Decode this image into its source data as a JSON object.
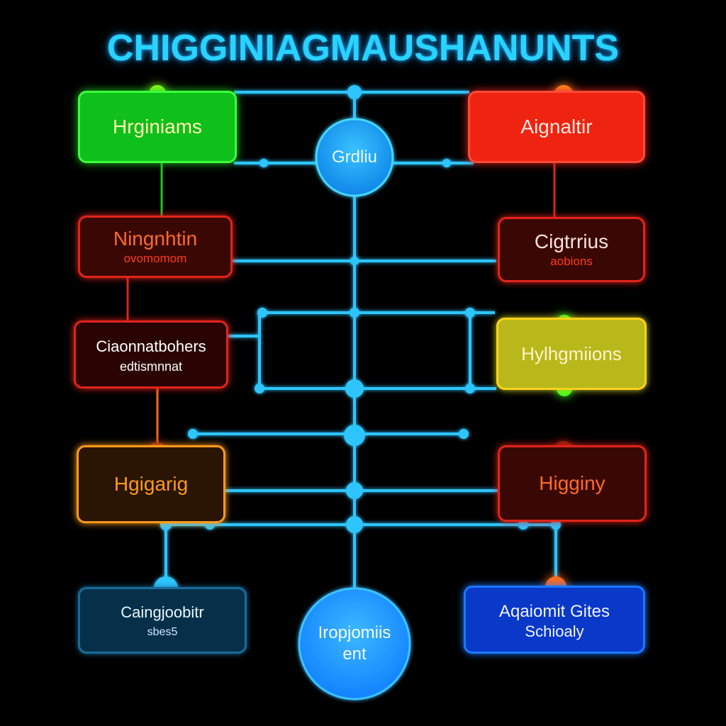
{
  "title": "CHIGGINIAGMAUSHANUNTS",
  "colors": {
    "wire": "#2ec5ff",
    "green": "#1ec81e",
    "red": "#e0241a",
    "darkred": "#3a0804",
    "orange": "#ff9a1a",
    "yellow": "#c8c81e",
    "blue": "#1a78ff",
    "background": "#000000"
  },
  "nodes": {
    "hub": {
      "label": "Grdliu"
    },
    "bottom_hub": {
      "line1": "Iropjomiis",
      "line2": "ent"
    },
    "green_box": {
      "label": "Hrginiams"
    },
    "red_box_top": {
      "label": "Aignaltir"
    },
    "red_box_left": {
      "label": "Ningnhtin",
      "sub": "ovomomom"
    },
    "red_box_right": {
      "label": "Cigtrrius",
      "sub": "aobions"
    },
    "dark_box_left": {
      "label": "Ciaonnatbohers",
      "sub": "edtismnnat"
    },
    "yellow_box": {
      "label": "Hylhgmiions"
    },
    "orange_box": {
      "label": "Hgigarig"
    },
    "red_box_mid_right": {
      "label": "Higginy"
    },
    "teal_box_bottom": {
      "label": "Caingjoobitr",
      "sub": "sbes5"
    },
    "blue_box_bottom": {
      "label": "Aqaiomit Gites",
      "sub": "Schioaly"
    }
  }
}
